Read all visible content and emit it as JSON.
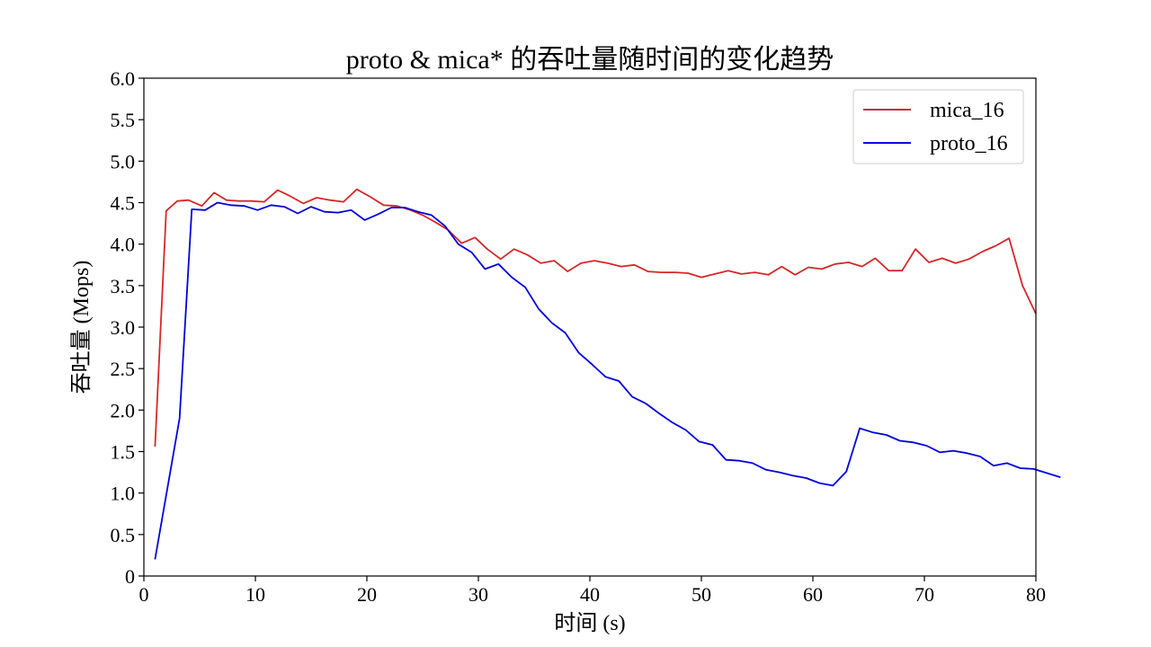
{
  "chart_data": {
    "type": "line",
    "title": "proto & mica* 的吞吐量随时间的变化趋势",
    "xlabel": "时间 (s)",
    "ylabel": "吞吐量 (Mops)",
    "xlim": [
      0,
      80
    ],
    "ylim": [
      0,
      6.0
    ],
    "x_ticks": [
      "0",
      "10",
      "20",
      "30",
      "40",
      "50",
      "60",
      "70",
      "80"
    ],
    "y_ticks": [
      "0",
      "0.5",
      "1.0",
      "1.5",
      "2.0",
      "2.5",
      "3.0",
      "3.5",
      "4.0",
      "4.5",
      "5.0",
      "5.5",
      "6.0"
    ],
    "grid": false,
    "legend_position": "top-right",
    "series": [
      {
        "name": "mica_16",
        "color": "#d62728",
        "points": [
          [
            1.0,
            1.56
          ],
          [
            2.0,
            4.4
          ],
          [
            3.0,
            4.52
          ],
          [
            4.0,
            4.53
          ],
          [
            5.2,
            4.46
          ],
          [
            6.3,
            4.62
          ],
          [
            7.4,
            4.53
          ],
          [
            8.5,
            4.52
          ],
          [
            9.6,
            4.52
          ],
          [
            10.8,
            4.51
          ],
          [
            12.0,
            4.65
          ],
          [
            13.1,
            4.58
          ],
          [
            14.3,
            4.49
          ],
          [
            15.5,
            4.56
          ],
          [
            16.7,
            4.53
          ],
          [
            17.9,
            4.51
          ],
          [
            19.1,
            4.66
          ],
          [
            20.3,
            4.57
          ],
          [
            21.5,
            4.47
          ],
          [
            22.7,
            4.46
          ],
          [
            23.9,
            4.41
          ],
          [
            25.0,
            4.35
          ],
          [
            26.2,
            4.26
          ],
          [
            27.3,
            4.17
          ],
          [
            28.5,
            4.01
          ],
          [
            29.7,
            4.08
          ],
          [
            30.8,
            3.94
          ],
          [
            32.0,
            3.82
          ],
          [
            33.2,
            3.94
          ],
          [
            34.4,
            3.87
          ],
          [
            35.6,
            3.77
          ],
          [
            36.8,
            3.8
          ],
          [
            38.0,
            3.67
          ],
          [
            39.2,
            3.77
          ],
          [
            40.4,
            3.8
          ],
          [
            41.6,
            3.77
          ],
          [
            42.8,
            3.73
          ],
          [
            44.0,
            3.75
          ],
          [
            45.2,
            3.67
          ],
          [
            46.4,
            3.66
          ],
          [
            47.6,
            3.66
          ],
          [
            48.8,
            3.65
          ],
          [
            50.0,
            3.6
          ],
          [
            51.2,
            3.64
          ],
          [
            52.4,
            3.68
          ],
          [
            53.6,
            3.64
          ],
          [
            54.8,
            3.66
          ],
          [
            56.0,
            3.63
          ],
          [
            57.2,
            3.73
          ],
          [
            58.4,
            3.63
          ],
          [
            59.6,
            3.72
          ],
          [
            60.8,
            3.7
          ],
          [
            62.0,
            3.76
          ],
          [
            63.2,
            3.78
          ],
          [
            64.4,
            3.73
          ],
          [
            65.6,
            3.83
          ],
          [
            66.8,
            3.68
          ],
          [
            68.0,
            3.68
          ],
          [
            69.2,
            3.94
          ],
          [
            70.4,
            3.78
          ],
          [
            71.6,
            3.83
          ],
          [
            72.8,
            3.77
          ],
          [
            74.0,
            3.82
          ],
          [
            75.2,
            3.91
          ],
          [
            76.4,
            3.98
          ],
          [
            77.6,
            4.07
          ],
          [
            78.8,
            3.5
          ],
          [
            80.0,
            3.16
          ]
        ]
      },
      {
        "name": "proto_16",
        "color": "#0000dd",
        "points": [
          [
            1.0,
            0.2
          ],
          [
            3.2,
            1.9
          ],
          [
            4.3,
            4.42
          ],
          [
            5.5,
            4.41
          ],
          [
            6.6,
            4.5
          ],
          [
            7.8,
            4.47
          ],
          [
            9.0,
            4.46
          ],
          [
            10.2,
            4.41
          ],
          [
            11.4,
            4.47
          ],
          [
            12.6,
            4.45
          ],
          [
            13.8,
            4.37
          ],
          [
            15.0,
            4.45
          ],
          [
            16.2,
            4.39
          ],
          [
            17.4,
            4.38
          ],
          [
            18.6,
            4.41
          ],
          [
            19.8,
            4.29
          ],
          [
            21.0,
            4.36
          ],
          [
            22.2,
            4.44
          ],
          [
            23.4,
            4.44
          ],
          [
            24.6,
            4.39
          ],
          [
            25.8,
            4.35
          ],
          [
            27.0,
            4.22
          ],
          [
            28.2,
            4.0
          ],
          [
            29.4,
            3.9
          ],
          [
            30.6,
            3.7
          ],
          [
            31.8,
            3.76
          ],
          [
            33.0,
            3.6
          ],
          [
            34.2,
            3.48
          ],
          [
            35.4,
            3.22
          ],
          [
            36.6,
            3.05
          ],
          [
            37.8,
            2.93
          ],
          [
            39.0,
            2.69
          ],
          [
            40.2,
            2.55
          ],
          [
            41.4,
            2.4
          ],
          [
            42.6,
            2.35
          ],
          [
            43.8,
            2.16
          ],
          [
            45.0,
            2.08
          ],
          [
            46.2,
            1.96
          ],
          [
            47.4,
            1.85
          ],
          [
            48.6,
            1.76
          ],
          [
            49.8,
            1.62
          ],
          [
            51.0,
            1.58
          ],
          [
            52.2,
            1.4
          ],
          [
            53.4,
            1.39
          ],
          [
            54.6,
            1.36
          ],
          [
            55.8,
            1.28
          ],
          [
            57.0,
            1.25
          ],
          [
            58.2,
            1.21
          ],
          [
            59.4,
            1.18
          ],
          [
            60.6,
            1.12
          ],
          [
            61.8,
            1.09
          ],
          [
            63.0,
            1.26
          ],
          [
            64.2,
            1.78
          ],
          [
            65.4,
            1.73
          ],
          [
            66.6,
            1.7
          ],
          [
            67.8,
            1.63
          ],
          [
            69.0,
            1.61
          ],
          [
            70.2,
            1.57
          ],
          [
            71.4,
            1.49
          ],
          [
            72.6,
            1.51
          ],
          [
            73.8,
            1.48
          ],
          [
            75.0,
            1.44
          ],
          [
            76.2,
            1.33
          ],
          [
            77.4,
            1.36
          ],
          [
            78.6,
            1.3
          ],
          [
            79.8,
            1.29
          ],
          [
            81.0,
            1.24
          ],
          [
            82.2,
            1.19
          ]
        ]
      }
    ]
  }
}
